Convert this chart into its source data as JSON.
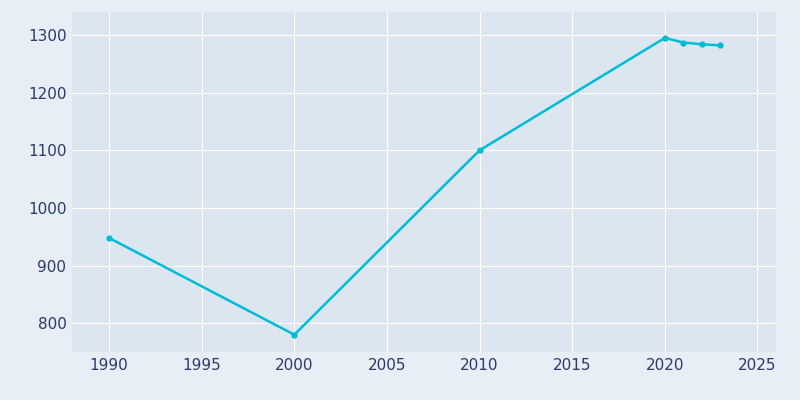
{
  "years": [
    1990,
    2000,
    2010,
    2020,
    2021,
    2022,
    2023
  ],
  "population": [
    948,
    780,
    1100,
    1295,
    1287,
    1284,
    1282
  ],
  "line_color": "#00BCD4",
  "marker": "o",
  "marker_size": 3.5,
  "line_width": 1.8,
  "bg_color": "#E8EEF5",
  "plot_bg_color": "#DCE6F0",
  "xlim": [
    1988,
    2026
  ],
  "ylim": [
    750,
    1340
  ],
  "xticks": [
    1990,
    1995,
    2000,
    2005,
    2010,
    2015,
    2020,
    2025
  ],
  "yticks": [
    800,
    900,
    1000,
    1100,
    1200,
    1300
  ],
  "tick_label_color": "#2B3A6B",
  "tick_label_size": 11,
  "grid_color": "#FFFFFF",
  "grid_linewidth": 0.8
}
